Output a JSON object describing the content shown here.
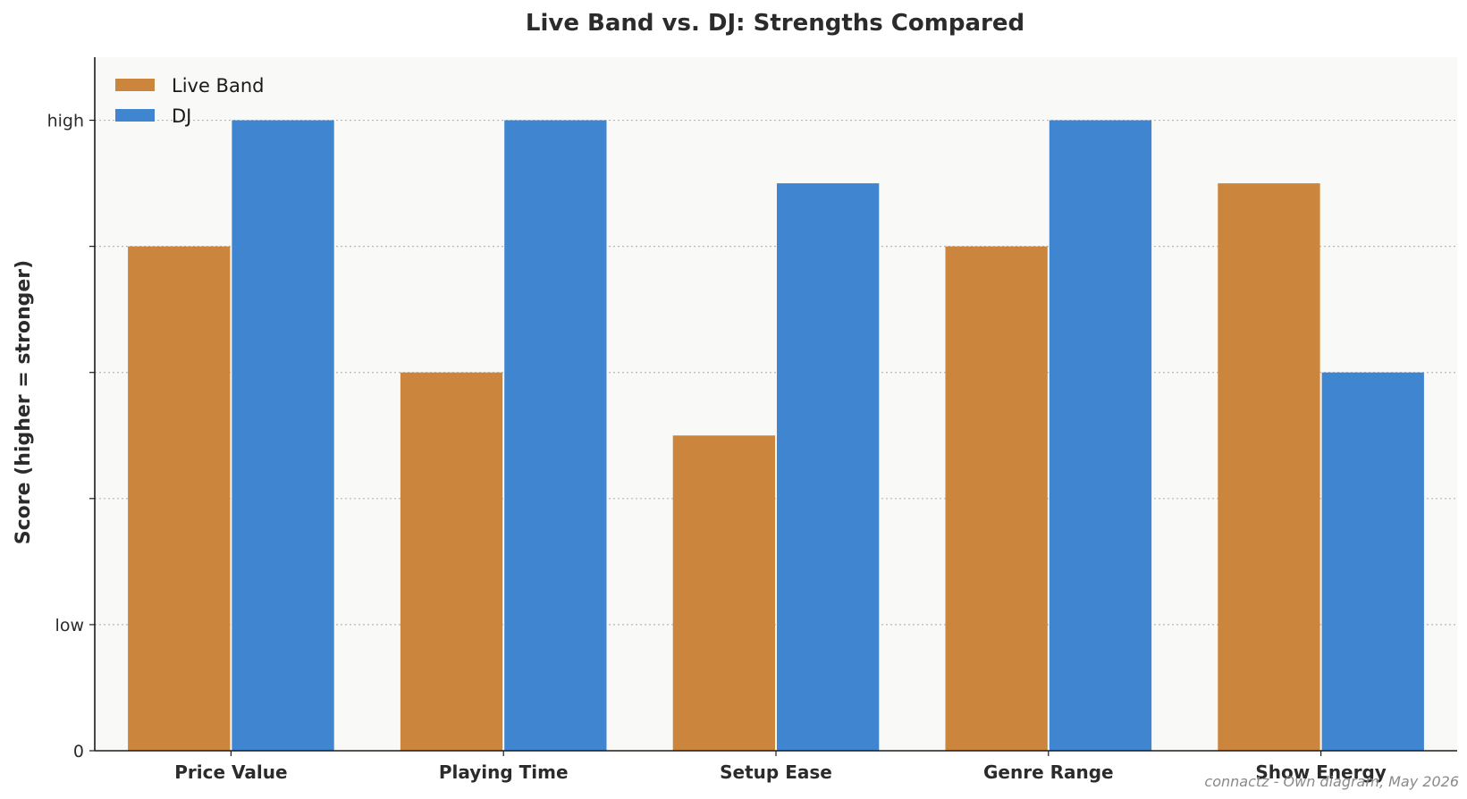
{
  "chart_data": {
    "type": "bar",
    "title": "Live Band vs. DJ: Strengths Compared",
    "xlabel": "",
    "ylabel": "Score (higher = stronger)",
    "categories": [
      "Price Value",
      "Playing Time",
      "Setup Ease",
      "Genre Range",
      "Show Energy"
    ],
    "series": [
      {
        "name": "Live Band",
        "color": "#cc853d",
        "values": [
          4,
          3,
          2.5,
          4,
          4.5
        ]
      },
      {
        "name": "DJ",
        "color": "#3f85cf",
        "values": [
          5,
          5,
          4.5,
          5,
          3
        ]
      }
    ],
    "ylim": [
      0,
      5.5
    ],
    "y_ticks": [
      {
        "value": 0,
        "label": "0"
      },
      {
        "value": 1,
        "label": "low"
      },
      {
        "value": 2,
        "label": ""
      },
      {
        "value": 3,
        "label": ""
      },
      {
        "value": 4,
        "label": ""
      },
      {
        "value": 5,
        "label": "high"
      }
    ],
    "grid": {
      "y": true,
      "style": "dotted"
    },
    "legend": "top-left",
    "colors": {
      "plot_background": "#f9f9f7",
      "grid": "#b8b8b8",
      "axis": "#1a1a1a"
    },
    "annotations": [
      {
        "text": "connactz - Own diagram, May 2026",
        "position": "bottom-right"
      }
    ]
  }
}
